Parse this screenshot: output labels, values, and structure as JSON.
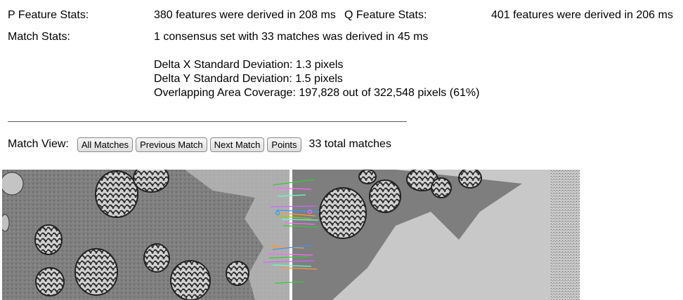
{
  "stats": {
    "p_label": "P Feature Stats:",
    "p_value": "380 features were derived in 208 ms",
    "q_label": "Q Feature Stats:",
    "q_value": "401 features were derived in 206 ms",
    "match_label": "Match Stats:",
    "match_value": "1 consensus set with 33 matches was derived in 45 ms",
    "delta_x": "Delta X Standard Deviation: 1.3 pixels",
    "delta_y": "Delta Y Standard Deviation: 1.5 pixels",
    "overlap": "Overlapping Area Coverage: 197,828 out of 322,548 pixels (61%)"
  },
  "match_view": {
    "label": "Match View:",
    "buttons": {
      "all": "All Matches",
      "previous": "Previous Match",
      "next": "Next Match",
      "points": "Points"
    },
    "total": "33 total matches"
  },
  "colors": {
    "match_lines": [
      "#33cc33",
      "#ff66ff",
      "#3399ff",
      "#ff9933",
      "#66ffcc",
      "#cc66ff",
      "#99cc00",
      "#ff6666"
    ]
  }
}
